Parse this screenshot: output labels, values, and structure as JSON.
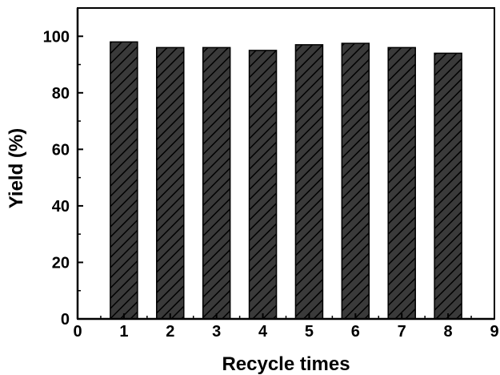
{
  "chart_data": {
    "type": "bar",
    "title": "",
    "xlabel": "Recycle times",
    "ylabel": "Yield (%)",
    "x": [
      1,
      2,
      3,
      4,
      5,
      6,
      7,
      8
    ],
    "values": [
      98,
      96,
      96,
      95,
      97,
      97.5,
      96,
      94
    ],
    "xlim": [
      0,
      9
    ],
    "ylim": [
      0,
      110
    ],
    "xticks": [
      "0",
      "1",
      "2",
      "3",
      "4",
      "5",
      "6",
      "7",
      "8",
      "9"
    ],
    "yticks": [
      "0",
      "20",
      "40",
      "60",
      "80",
      "100"
    ],
    "grid": false,
    "legend": "none",
    "bar_fill": "#3a3a3a",
    "bar_pattern": "diagonal-hatch",
    "hatch_color": "#000000",
    "axis_color": "#000000"
  }
}
